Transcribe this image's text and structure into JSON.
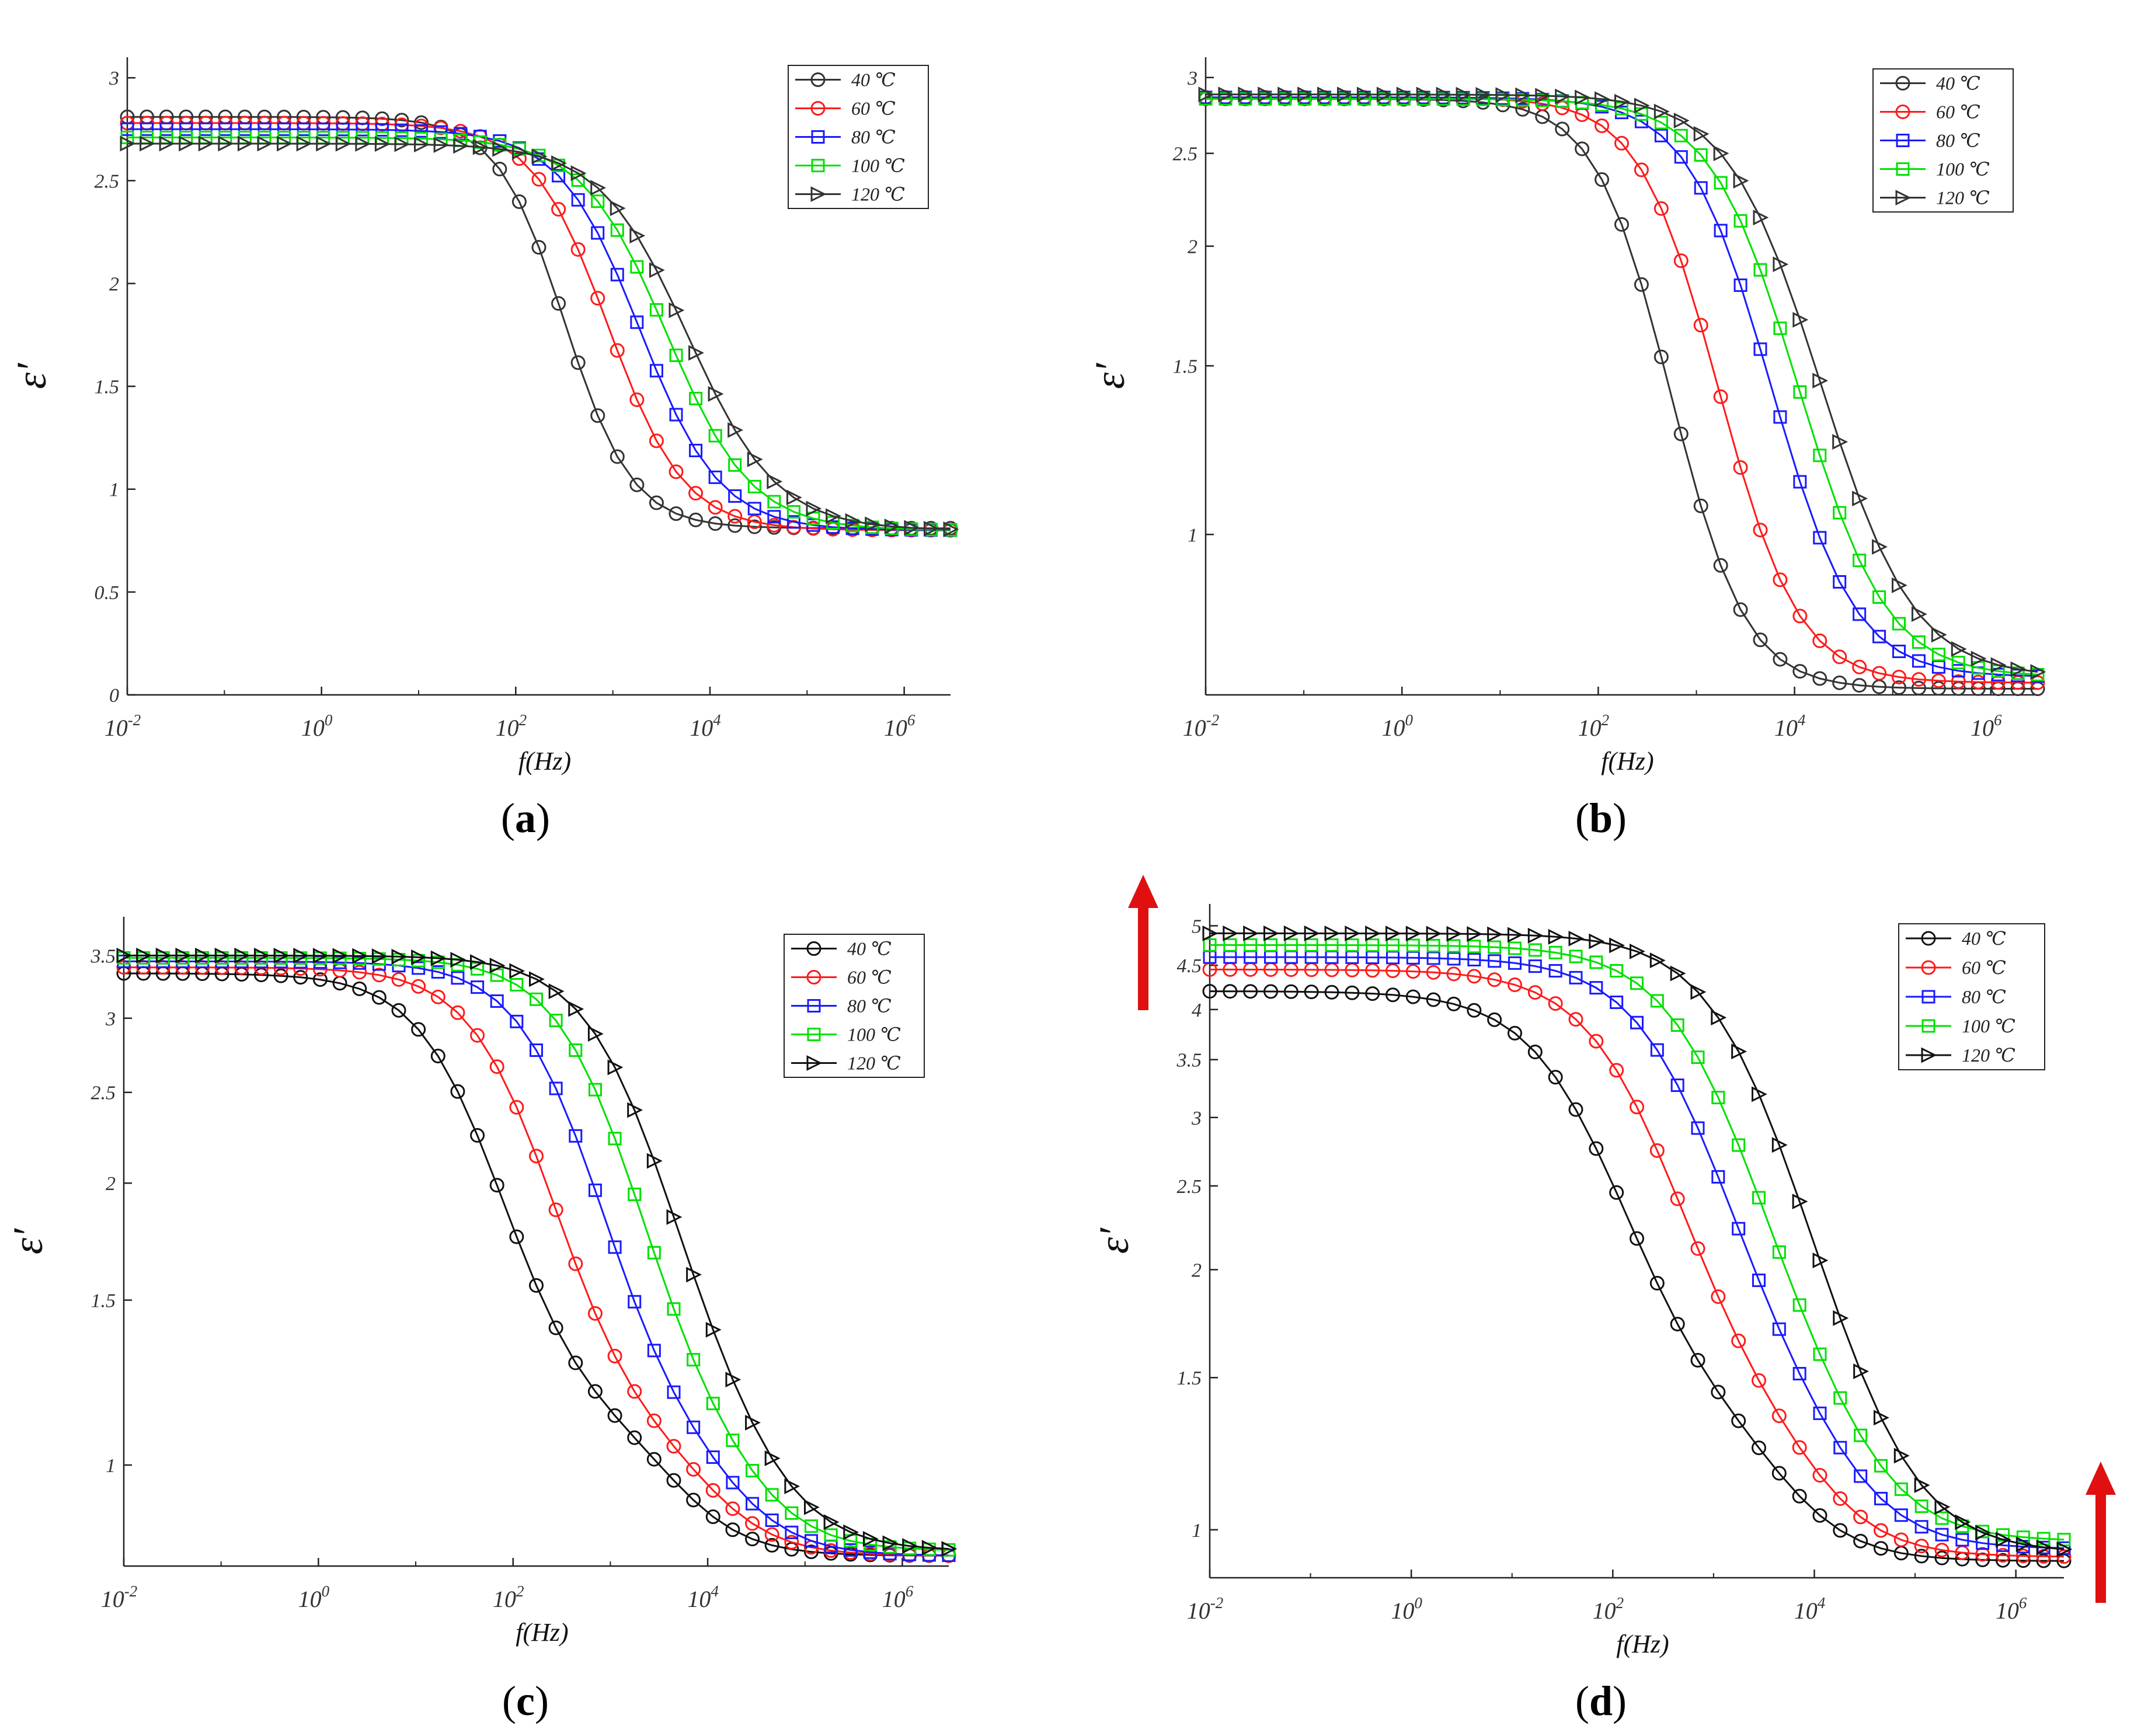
{
  "figure": {
    "description_labels": {
      "x_axis_label": "f(Hz)",
      "y_axis_label": "ε′"
    }
  },
  "chart_data": [
    {
      "type": "line",
      "panel": "a",
      "xscale": "log",
      "yscale": "linear",
      "xlabel": "f(Hz)",
      "ylabel": "ε′",
      "xlim": [
        0.01,
        3000000
      ],
      "ylim": [
        0,
        3.1
      ],
      "xticks": [
        {
          "base": "10",
          "exp": "-2"
        },
        {
          "base": "10",
          "exp": "0"
        },
        {
          "base": "10",
          "exp": "2"
        },
        {
          "base": "10",
          "exp": "4"
        },
        {
          "base": "10",
          "exp": "6"
        }
      ],
      "yticks": [
        "0",
        "0.5",
        "1",
        "1.5",
        "2",
        "2.5",
        "3"
      ],
      "ytick_values": [
        0,
        0.5,
        1,
        1.5,
        2,
        2.5,
        3
      ],
      "legend_position": "top-right",
      "series": [
        {
          "name": "40 ℃",
          "color": "#333333",
          "marker": "circle",
          "plateau": 2.81,
          "limit": 0.81,
          "fc": 320,
          "width": 0.8,
          "shoulder": null
        },
        {
          "name": "60 ℃",
          "color": "#ff1a1a",
          "marker": "circle",
          "plateau": 2.78,
          "limit": 0.8,
          "fc": 900,
          "width": 0.9,
          "shoulder": null
        },
        {
          "name": "80 ℃",
          "color": "#1a1aff",
          "marker": "square",
          "plateau": 2.75,
          "limit": 0.8,
          "fc": 1900,
          "width": 0.95,
          "shoulder": null
        },
        {
          "name": "100 ℃",
          "color": "#00e000",
          "marker": "square",
          "plateau": 2.71,
          "limit": 0.8,
          "fc": 3600,
          "width": 1.0,
          "shoulder": null
        },
        {
          "name": "120 ℃",
          "color": "#333333",
          "marker": "triangle",
          "plateau": 2.68,
          "limit": 0.8,
          "fc": 6000,
          "width": 1.05,
          "shoulder": null
        }
      ]
    },
    {
      "type": "line",
      "panel": "b",
      "xscale": "log",
      "yscale": "log",
      "xlabel": "f(Hz)",
      "ylabel": "ε′",
      "xlim": [
        0.01,
        3000000
      ],
      "ylim": [
        0.68,
        3.15
      ],
      "xticks": [
        {
          "base": "10",
          "exp": "-2"
        },
        {
          "base": "10",
          "exp": "0"
        },
        {
          "base": "10",
          "exp": "2"
        },
        {
          "base": "10",
          "exp": "4"
        },
        {
          "base": "10",
          "exp": "6"
        }
      ],
      "yticks": [
        "1",
        "1.5",
        "2",
        "2.5",
        "3"
      ],
      "ytick_values": [
        1,
        1.5,
        2,
        2.5,
        3
      ],
      "legend_position": "top-right",
      "series": [
        {
          "name": "40 ℃",
          "color": "#333333",
          "marker": "circle",
          "plateau": 2.85,
          "limit": 0.69,
          "fc": 300,
          "width": 0.85,
          "shoulder": null
        },
        {
          "name": "60 ℃",
          "color": "#ff1a1a",
          "marker": "circle",
          "plateau": 2.86,
          "limit": 0.7,
          "fc": 900,
          "width": 0.9,
          "shoulder": null
        },
        {
          "name": "80 ℃",
          "color": "#1a1aff",
          "marker": "square",
          "plateau": 2.86,
          "limit": 0.71,
          "fc": 3000,
          "width": 0.95,
          "shoulder": null
        },
        {
          "name": "100 ℃",
          "color": "#00e000",
          "marker": "square",
          "plateau": 2.85,
          "limit": 0.71,
          "fc": 5500,
          "width": 1.0,
          "shoulder": null
        },
        {
          "name": "120 ℃",
          "color": "#333333",
          "marker": "triangle",
          "plateau": 2.88,
          "limit": 0.71,
          "fc": 9000,
          "width": 1.05,
          "shoulder": null
        }
      ]
    },
    {
      "type": "line",
      "panel": "c",
      "xscale": "log",
      "yscale": "log",
      "xlabel": "f(Hz)",
      "ylabel": "ε′",
      "xlim": [
        0.01,
        3000000
      ],
      "ylim": [
        0.78,
        3.85
      ],
      "xticks": [
        {
          "base": "10",
          "exp": "-2"
        },
        {
          "base": "10",
          "exp": "0"
        },
        {
          "base": "10",
          "exp": "2"
        },
        {
          "base": "10",
          "exp": "4"
        },
        {
          "base": "10",
          "exp": "6"
        }
      ],
      "yticks": [
        "1",
        "1.5",
        "2",
        "2.5",
        "3",
        "3.5"
      ],
      "ytick_values": [
        1,
        1.5,
        2,
        2.5,
        3,
        3.5
      ],
      "legend_position": "top-right",
      "series": [
        {
          "name": "40 ℃",
          "color": "#111111",
          "marker": "circle",
          "plateau": 3.35,
          "limit": 0.8,
          "fc": 45,
          "width": 1.0,
          "shoulder": {
            "fc": 4000,
            "amp": 0.3,
            "width": 0.9
          }
        },
        {
          "name": "60 ℃",
          "color": "#ff1a1a",
          "marker": "circle",
          "plateau": 3.4,
          "limit": 0.8,
          "fc": 150,
          "width": 1.0,
          "shoulder": {
            "fc": 9000,
            "amp": 0.25,
            "width": 0.9
          }
        },
        {
          "name": "80 ℃",
          "color": "#1a1aff",
          "marker": "square",
          "plateau": 3.45,
          "limit": 0.8,
          "fc": 450,
          "width": 1.0,
          "shoulder": {
            "fc": 15000,
            "amp": 0.22,
            "width": 0.9
          }
        },
        {
          "name": "100 ℃",
          "color": "#00e000",
          "marker": "square",
          "plateau": 3.48,
          "limit": 0.81,
          "fc": 1100,
          "width": 1.0,
          "shoulder": {
            "fc": 22000,
            "amp": 0.2,
            "width": 0.9
          }
        },
        {
          "name": "120 ℃",
          "color": "#111111",
          "marker": "triangle",
          "plateau": 3.5,
          "limit": 0.81,
          "fc": 2300,
          "width": 1.05,
          "shoulder": {
            "fc": 30000,
            "amp": 0.18,
            "width": 0.9
          }
        }
      ]
    },
    {
      "type": "line",
      "panel": "d",
      "xscale": "log",
      "yscale": "log",
      "xlabel": "f(Hz)",
      "ylabel": "ε′",
      "xlim": [
        0.01,
        3000000
      ],
      "ylim": [
        0.88,
        5.3
      ],
      "xticks": [
        {
          "base": "10",
          "exp": "-2"
        },
        {
          "base": "10",
          "exp": "0"
        },
        {
          "base": "10",
          "exp": "2"
        },
        {
          "base": "10",
          "exp": "4"
        },
        {
          "base": "10",
          "exp": "6"
        }
      ],
      "yticks": [
        "1",
        "1.5",
        "2",
        "2.5",
        "3",
        "3.5",
        "4",
        "4.5",
        "5"
      ],
      "ytick_values": [
        1,
        1.5,
        2,
        2.5,
        3,
        3.5,
        4,
        4.5,
        5
      ],
      "legend_position": "top-right",
      "series": [
        {
          "name": "40 ℃",
          "color": "#111111",
          "marker": "circle",
          "plateau": 4.2,
          "limit": 0.92,
          "fc": 70,
          "width": 1.1,
          "shoulder": {
            "fc": 4000,
            "amp": 0.38,
            "width": 0.9
          }
        },
        {
          "name": "60 ℃",
          "color": "#ff1a1a",
          "marker": "circle",
          "plateau": 4.45,
          "limit": 0.93,
          "fc": 240,
          "width": 1.1,
          "shoulder": {
            "fc": 8000,
            "amp": 0.33,
            "width": 0.9
          }
        },
        {
          "name": "80 ℃",
          "color": "#1a1aff",
          "marker": "square",
          "plateau": 4.6,
          "limit": 0.95,
          "fc": 700,
          "width": 1.1,
          "shoulder": {
            "fc": 14000,
            "amp": 0.3,
            "width": 0.9
          }
        },
        {
          "name": "100 ℃",
          "color": "#00e000",
          "marker": "square",
          "plateau": 4.75,
          "limit": 0.97,
          "fc": 1400,
          "width": 1.1,
          "shoulder": {
            "fc": 20000,
            "amp": 0.26,
            "width": 0.9
          }
        },
        {
          "name": "120 ℃",
          "color": "#111111",
          "marker": "triangle",
          "plateau": 4.9,
          "limit": 0.94,
          "fc": 3500,
          "width": 1.1,
          "shoulder": {
            "fc": 30000,
            "amp": 0.2,
            "width": 0.9
          }
        }
      ]
    }
  ],
  "panel_labels": [
    {
      "open": "(",
      "letter": "a",
      "close": ")"
    },
    {
      "open": "(",
      "letter": "b",
      "close": ")"
    },
    {
      "open": "(",
      "letter": "c",
      "close": ")"
    },
    {
      "open": "(",
      "letter": "d",
      "close": ")"
    }
  ],
  "annotations": {
    "arrow_color": "#e01010",
    "arrows": [
      "up",
      "up"
    ]
  }
}
